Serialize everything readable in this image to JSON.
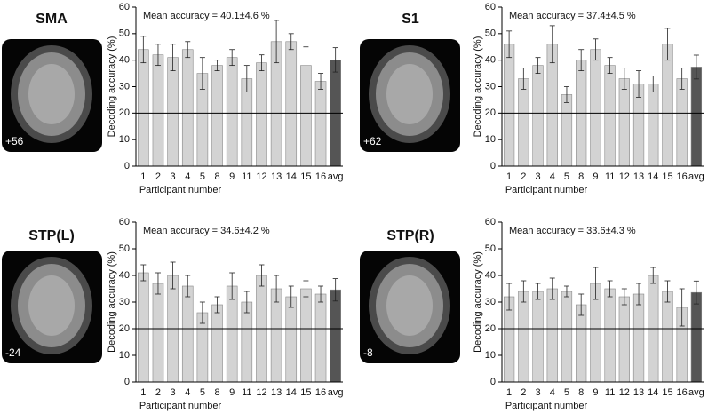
{
  "chart_data": [
    {
      "type": "bar",
      "title": "SMA",
      "slice_label": "+56",
      "annotation": "Mean accuracy =  40.1±4.6 %",
      "x_label": "Participant number",
      "y_label": "Decoding accuracy (%)",
      "categories": [
        "1",
        "2",
        "3",
        "4",
        "5",
        "8",
        "9",
        "11",
        "12",
        "13",
        "14",
        "15",
        "16",
        "avg"
      ],
      "values": [
        44,
        42,
        41,
        44,
        35,
        38,
        41,
        33,
        39,
        47,
        47,
        38,
        32,
        40.1
      ],
      "errors": [
        5,
        4,
        5,
        3,
        6,
        2,
        3,
        5,
        3,
        8,
        3,
        7,
        3,
        4.6
      ],
      "colors": [
        "#d3d3d3",
        "#d3d3d3",
        "#d3d3d3",
        "#d3d3d3",
        "#d3d3d3",
        "#d3d3d3",
        "#d3d3d3",
        "#d3d3d3",
        "#d3d3d3",
        "#d3d3d3",
        "#d3d3d3",
        "#d3d3d3",
        "#d3d3d3",
        "#555555"
      ],
      "ylim": [
        0,
        60
      ],
      "yticks": [
        0,
        10,
        20,
        30,
        40,
        50,
        60
      ],
      "reference_line": 20
    },
    {
      "type": "bar",
      "title": "S1",
      "slice_label": "+62",
      "annotation": "Mean accuracy =  37.4±4.5 %",
      "x_label": "Participant number",
      "y_label": "Decoding accuracy (%)",
      "categories": [
        "1",
        "2",
        "3",
        "4",
        "5",
        "8",
        "9",
        "11",
        "12",
        "13",
        "14",
        "15",
        "16",
        "avg"
      ],
      "values": [
        46,
        33,
        38,
        46,
        27,
        40,
        44,
        38,
        33,
        31,
        31,
        46,
        33,
        37.4
      ],
      "errors": [
        5,
        4,
        3,
        7,
        3,
        4,
        4,
        3,
        4,
        5,
        3,
        6,
        4,
        4.5
      ],
      "colors": [
        "#d3d3d3",
        "#d3d3d3",
        "#d3d3d3",
        "#d3d3d3",
        "#d3d3d3",
        "#d3d3d3",
        "#d3d3d3",
        "#d3d3d3",
        "#d3d3d3",
        "#d3d3d3",
        "#d3d3d3",
        "#d3d3d3",
        "#d3d3d3",
        "#555555"
      ],
      "ylim": [
        0,
        60
      ],
      "yticks": [
        0,
        10,
        20,
        30,
        40,
        50,
        60
      ],
      "reference_line": 20
    },
    {
      "type": "bar",
      "title": "STP(L)",
      "slice_label": "-24",
      "annotation": "Mean accuracy =  34.6±4.2 %",
      "x_label": "Participant number",
      "y_label": "Decoding accuracy (%)",
      "categories": [
        "1",
        "2",
        "3",
        "4",
        "5",
        "8",
        "9",
        "11",
        "12",
        "13",
        "14",
        "15",
        "16",
        "avg"
      ],
      "values": [
        41,
        37,
        40,
        36,
        26,
        29,
        36,
        30,
        40,
        35,
        32,
        35,
        33,
        34.6
      ],
      "errors": [
        3,
        4,
        5,
        4,
        4,
        3,
        5,
        4,
        4,
        5,
        4,
        3,
        3,
        4.2
      ],
      "colors": [
        "#d3d3d3",
        "#d3d3d3",
        "#d3d3d3",
        "#d3d3d3",
        "#d3d3d3",
        "#d3d3d3",
        "#d3d3d3",
        "#d3d3d3",
        "#d3d3d3",
        "#d3d3d3",
        "#d3d3d3",
        "#d3d3d3",
        "#d3d3d3",
        "#555555"
      ],
      "ylim": [
        0,
        60
      ],
      "yticks": [
        0,
        10,
        20,
        30,
        40,
        50,
        60
      ],
      "reference_line": 20
    },
    {
      "type": "bar",
      "title": "STP(R)",
      "slice_label": "-8",
      "annotation": "Mean accuracy =  33.6±4.3 %",
      "x_label": "Participant number",
      "y_label": "Decoding accuracy (%)",
      "categories": [
        "1",
        "2",
        "3",
        "4",
        "5",
        "8",
        "9",
        "11",
        "12",
        "13",
        "14",
        "15",
        "16",
        "avg"
      ],
      "values": [
        32,
        34,
        34,
        35,
        34,
        29,
        37,
        35,
        32,
        33,
        40,
        34,
        28,
        33.6
      ],
      "errors": [
        5,
        4,
        3,
        4,
        2,
        4,
        6,
        3,
        3,
        4,
        3,
        4,
        7,
        4.3
      ],
      "colors": [
        "#d3d3d3",
        "#d3d3d3",
        "#d3d3d3",
        "#d3d3d3",
        "#d3d3d3",
        "#d3d3d3",
        "#d3d3d3",
        "#d3d3d3",
        "#d3d3d3",
        "#d3d3d3",
        "#d3d3d3",
        "#d3d3d3",
        "#d3d3d3",
        "#555555"
      ],
      "ylim": [
        0,
        60
      ],
      "yticks": [
        0,
        10,
        20,
        30,
        40,
        50,
        60
      ],
      "reference_line": 20
    }
  ]
}
